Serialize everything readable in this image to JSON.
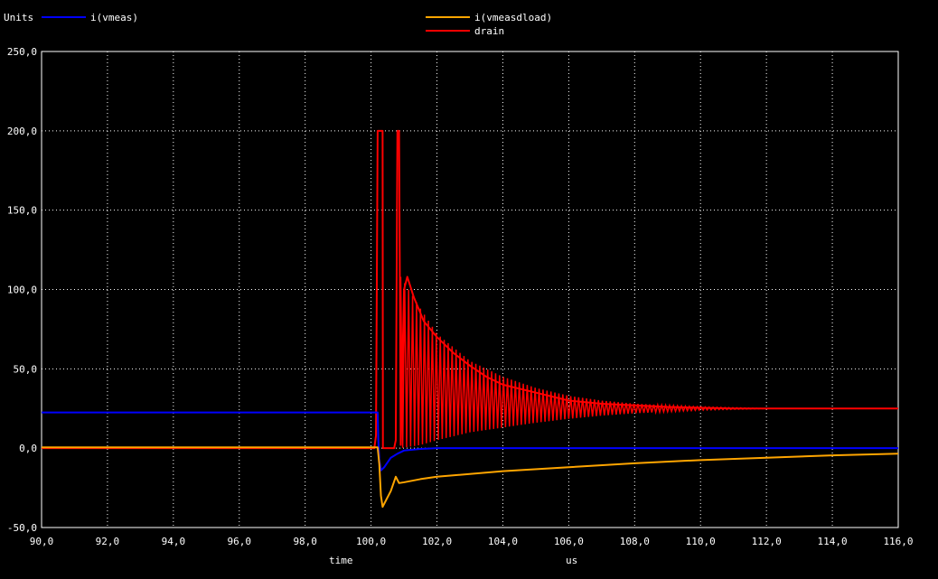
{
  "chart_data": {
    "type": "line",
    "title": "",
    "ylabel": "Units",
    "xlabel": "time",
    "xunit": "us",
    "xlim": [
      90.0,
      116.0
    ],
    "ylim": [
      -50.0,
      250.0
    ],
    "xticks": [
      90.0,
      92.0,
      94.0,
      96.0,
      98.0,
      100.0,
      102.0,
      104.0,
      106.0,
      108.0,
      110.0,
      112.0,
      114.0,
      116.0
    ],
    "xtick_labels": [
      "90,0",
      "92,0",
      "94,0",
      "96,0",
      "98,0",
      "100,0",
      "102,0",
      "104,0",
      "106,0",
      "108,0",
      "110,0",
      "112,0",
      "114,0",
      "116,0"
    ],
    "yticks": [
      -50.0,
      0.0,
      50.0,
      100.0,
      150.0,
      200.0,
      250.0
    ],
    "ytick_labels": [
      "-50,0",
      "0,0",
      "50,0",
      "100,0",
      "150,0",
      "200,0",
      "250,0"
    ],
    "grid": true,
    "legend_position": "top",
    "series": [
      {
        "name": "i(vmeas)",
        "color": "#0000ff",
        "x": [
          90.0,
          100.2,
          100.22,
          100.25,
          100.3,
          100.4,
          100.5,
          100.6,
          100.8,
          101.0,
          101.5,
          102.0,
          104.0,
          116.0
        ],
        "y": [
          22.5,
          22.5,
          5.0,
          -8.0,
          -14.0,
          -12.0,
          -9.0,
          -6.0,
          -3.5,
          -1.5,
          -0.5,
          0.0,
          0.0,
          0.0
        ]
      },
      {
        "name": "i(vmeasdload)",
        "color": "#ffa500",
        "x": [
          90.0,
          100.2,
          100.25,
          100.3,
          100.35,
          100.45,
          100.6,
          100.75,
          100.85,
          101.0,
          101.5,
          102.0,
          104.0,
          106.0,
          108.0,
          110.0,
          112.0,
          114.0,
          116.0
        ],
        "y": [
          0.5,
          0.5,
          -10.0,
          -30.0,
          -37.0,
          -33.0,
          -27.0,
          -18.0,
          -22.0,
          -21.5,
          -19.5,
          -18.0,
          -14.5,
          -12.0,
          -9.5,
          -7.5,
          -6.0,
          -4.5,
          -3.5
        ]
      },
      {
        "name": "drain",
        "color": "#ff0000",
        "x": [
          90.0,
          100.1,
          100.15,
          100.2,
          100.22,
          100.3,
          100.35,
          100.36,
          100.4,
          100.7,
          100.75,
          100.8,
          100.85,
          100.9,
          101.0,
          101.1,
          101.3,
          101.6,
          102.0,
          102.5,
          103.0,
          103.5,
          104.0,
          105.0,
          106.0,
          107.0,
          108.0,
          109.0,
          110.0,
          111.0,
          112.0,
          116.0
        ],
        "y": [
          0.0,
          0.0,
          8.0,
          200.0,
          200.0,
          200.0,
          200.0,
          0.0,
          0.0,
          0.0,
          5.0,
          200.0,
          200.0,
          2.0,
          100.0,
          108.0,
          95.0,
          80.0,
          70.0,
          60.0,
          52.0,
          45.0,
          40.0,
          35.0,
          30.0,
          28.0,
          27.0,
          26.0,
          25.5,
          25.0,
          25.0,
          25.0
        ],
        "envelope": {
          "center_x": [
            100.9,
            101.5,
            102.0,
            103.0,
            104.0,
            105.0,
            106.0,
            107.0,
            108.0,
            109.0,
            110.0,
            111.0,
            112.0
          ],
          "upper": [
            108.0,
            88.0,
            72.0,
            55.0,
            45.0,
            38.0,
            33.0,
            30.0,
            28.0,
            27.0,
            26.0,
            25.5,
            25.0
          ],
          "lower": [
            0.0,
            2.0,
            5.0,
            10.0,
            13.0,
            16.0,
            18.5,
            20.5,
            22.0,
            23.0,
            24.0,
            24.5,
            25.0
          ]
        }
      }
    ]
  }
}
